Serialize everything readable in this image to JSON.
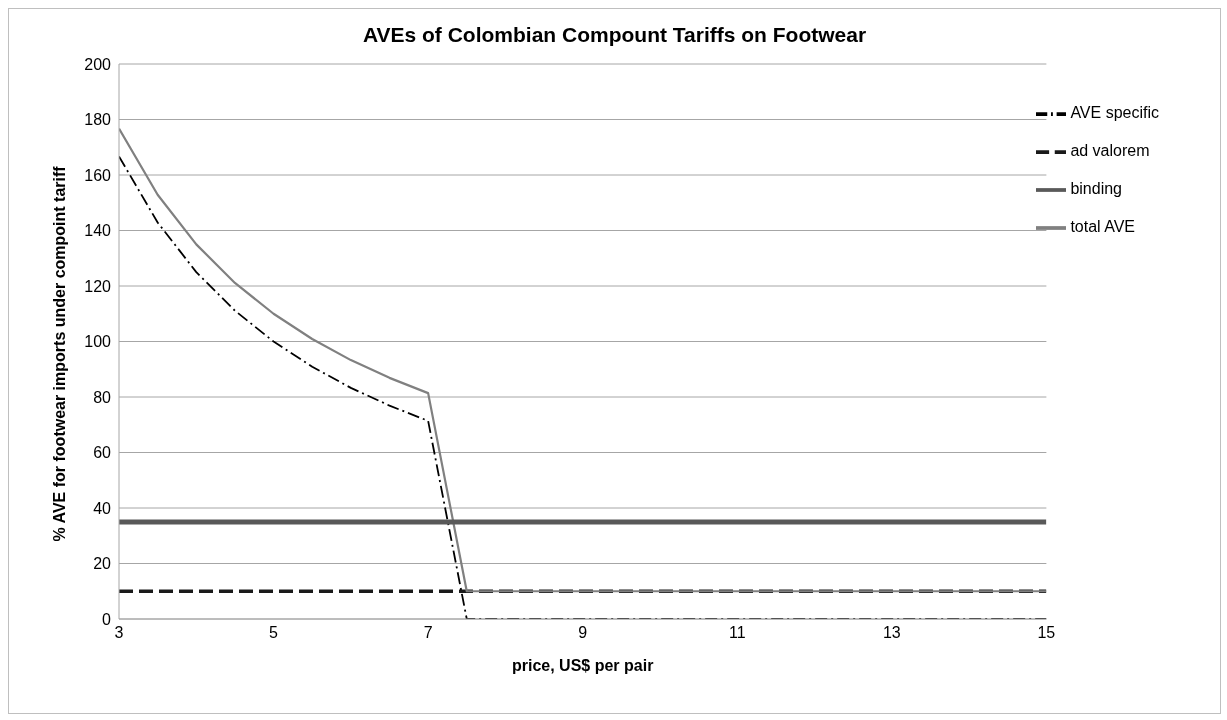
{
  "chart_data": {
    "type": "line",
    "title": "AVEs of Colombian Compount Tariffs on Footwear",
    "xlabel": "price, US$ per pair",
    "ylabel": "% AVE for footwear imports under compoint tariff",
    "x": [
      3,
      3.5,
      4,
      4.5,
      5,
      5.5,
      6,
      6.5,
      7,
      7.5,
      8,
      9,
      10,
      11,
      12,
      13,
      14,
      15
    ],
    "series": [
      {
        "name": "ad valorem",
        "color": "#1a1a1a",
        "line_style": "dashed",
        "values": [
          10,
          10,
          10,
          10,
          10,
          10,
          10,
          10,
          10,
          10,
          10,
          10,
          10,
          10,
          10,
          10,
          10,
          10
        ]
      },
      {
        "name": "AVE specific",
        "color": "#000000",
        "line_style": "dashdot",
        "values": [
          166.7,
          142.9,
          125,
          111.1,
          100,
          90.9,
          83.3,
          76.9,
          71.4,
          0,
          0,
          0,
          0,
          0,
          0,
          0,
          0,
          0
        ]
      },
      {
        "name": "total AVE",
        "color": "#808080",
        "line_style": "solid",
        "values": [
          176.7,
          152.9,
          135,
          121.1,
          110,
          100.9,
          93.3,
          86.9,
          81.4,
          10,
          10,
          10,
          10,
          10,
          10,
          10,
          10,
          10
        ]
      },
      {
        "name": "binding",
        "color": "#595959",
        "line_style": "solid",
        "values": [
          35,
          35,
          35,
          35,
          35,
          35,
          35,
          35,
          35,
          35,
          35,
          35,
          35,
          35,
          35,
          35,
          35,
          35
        ]
      }
    ],
    "xlim": [
      3,
      15
    ],
    "xticks": [
      3,
      5,
      7,
      9,
      11,
      13,
      15
    ],
    "ylim": [
      0,
      200
    ],
    "yticks": [
      0,
      20,
      40,
      60,
      80,
      100,
      120,
      140,
      160,
      180,
      200
    ],
    "grid": "y",
    "legend": "top right",
    "marker": "none"
  }
}
